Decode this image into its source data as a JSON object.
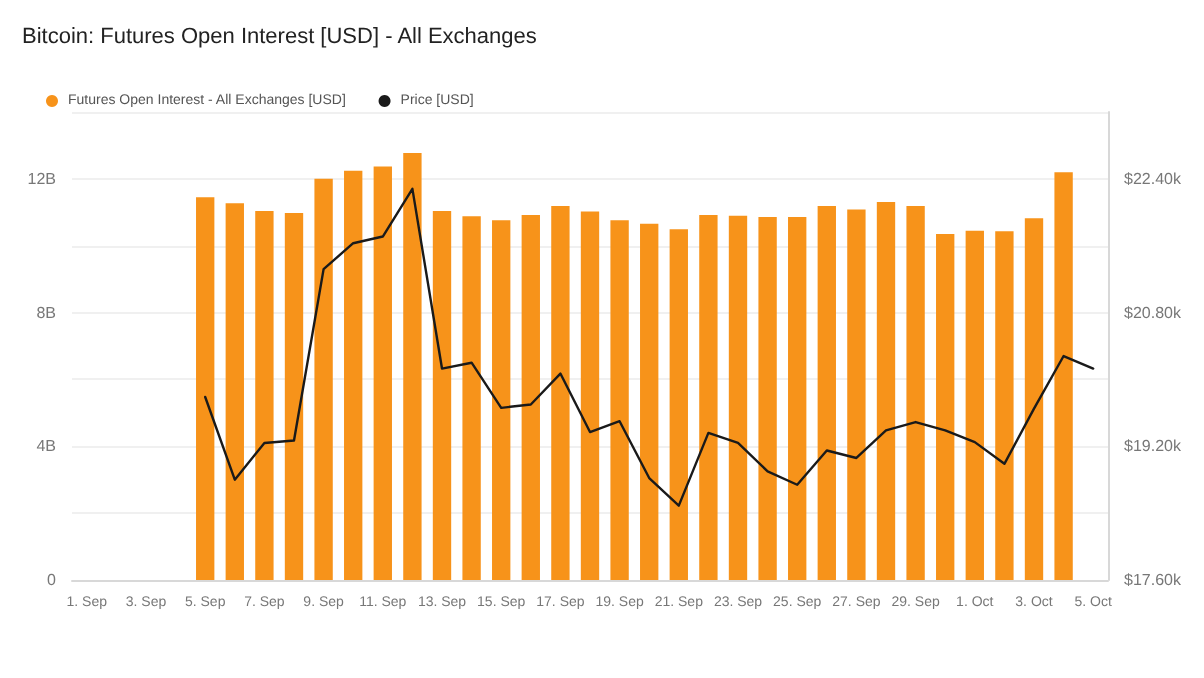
{
  "chart_data": {
    "type": "bar",
    "title": "Bitcoin: Futures Open Interest [USD] - All Exchanges",
    "categories": [
      "1. Sep",
      null,
      "3. Sep",
      null,
      "5. Sep",
      null,
      "7. Sep",
      null,
      "9. Sep",
      null,
      "11. Sep",
      null,
      "13. Sep",
      null,
      "15. Sep",
      null,
      "17. Sep",
      null,
      "19. Sep",
      null,
      "21. Sep",
      null,
      "23. Sep",
      null,
      "25. Sep",
      null,
      "27. Sep",
      null,
      "29. Sep",
      null,
      "1. Oct",
      null,
      "3. Oct",
      null,
      "5. Oct"
    ],
    "series": [
      {
        "name": "Futures Open Interest - All Exchanges [USD]",
        "color": "#f7931a",
        "values": [
          null,
          null,
          null,
          null,
          11.45,
          11.27,
          11.04,
          10.98,
          12.0,
          12.24,
          12.37,
          12.77,
          11.04,
          10.88,
          10.76,
          10.92,
          11.19,
          11.02,
          10.76,
          10.66,
          10.49,
          10.92,
          10.9,
          10.86,
          10.86,
          11.19,
          11.08,
          11.31,
          11.19,
          10.35,
          10.45,
          10.43,
          10.82,
          12.2,
          null
        ]
      },
      {
        "name": "Price [USD]",
        "type": "line",
        "axis": "y2",
        "color": "#1a1a1a",
        "values": [
          null,
          null,
          null,
          null,
          19790,
          18800,
          19240,
          19270,
          21320,
          21630,
          21710,
          22280,
          20130,
          20200,
          19660,
          19700,
          20070,
          19370,
          19500,
          18820,
          18490,
          19360,
          19240,
          18900,
          18740,
          19150,
          19060,
          19390,
          19490,
          19390,
          19250,
          18990,
          19650,
          20280,
          20130
        ]
      }
    ],
    "ylim": [
      0,
      14
    ],
    "yticks": [
      0,
      {
        "value": 2,
        "label": null
      },
      {
        "value": 4,
        "label": "4B"
      },
      {
        "value": 6,
        "label": null
      },
      {
        "value": 8,
        "label": "8B"
      },
      {
        "value": 10,
        "label": null
      },
      {
        "value": 12,
        "label": "12B"
      },
      {
        "value": 14,
        "label": null
      }
    ],
    "y2lim": [
      17600,
      23200
    ],
    "y2ticks": [
      {
        "value": 17600,
        "label": "$17.60k"
      },
      {
        "value": 19200,
        "label": "$19.20k"
      },
      {
        "value": 20800,
        "label": "$20.80k"
      },
      {
        "value": 22400,
        "label": "$22.40k"
      }
    ],
    "grid": "y",
    "legend": "top left",
    "marker": "none",
    "line_style": "solid"
  }
}
